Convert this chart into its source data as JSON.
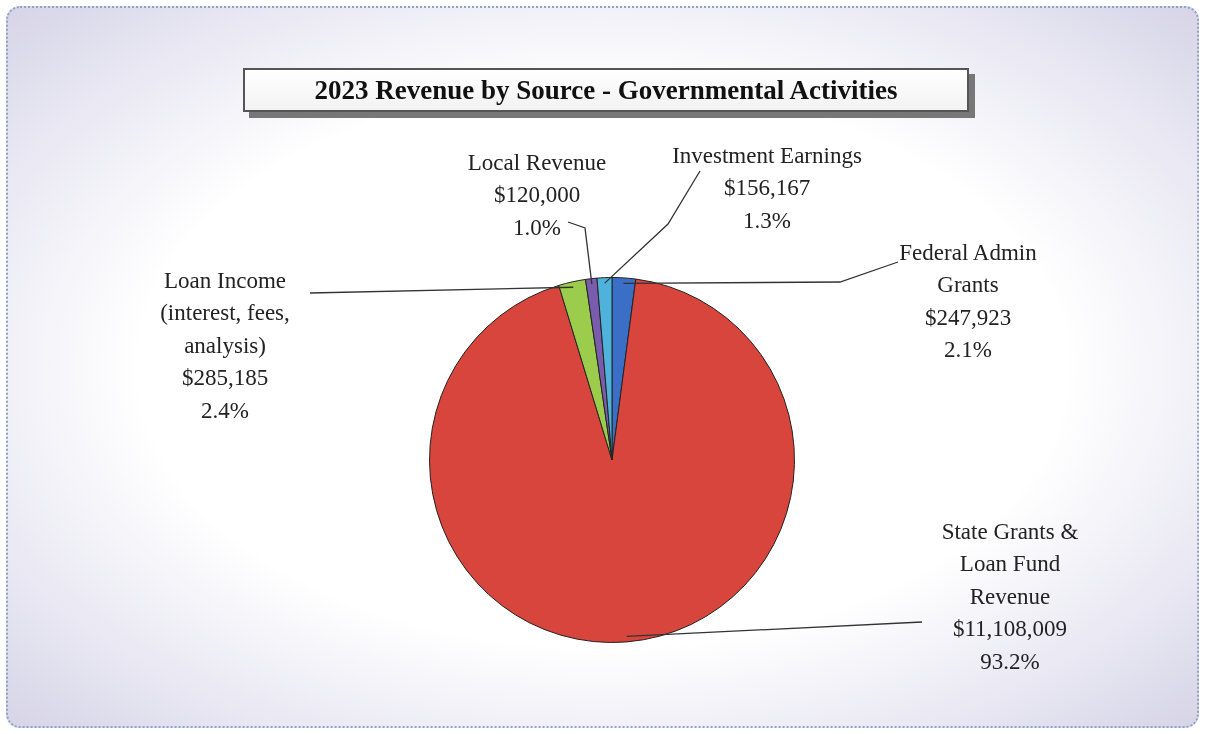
{
  "chart_data": {
    "type": "pie",
    "title": "2023 Revenue by Source - Governmental Activities",
    "categories": [
      "Federal Admin Grants",
      "State Grants & Loan Fund Revenue",
      "Loan Income (interest, fees, analysis)",
      "Local Revenue",
      "Investment Earnings"
    ],
    "values": [
      247923,
      11108009,
      285185,
      120000,
      156167
    ],
    "value_labels": [
      "$247,923\n2.1%",
      "$11,108,009\n93.2%",
      "$285,185\n2.4%",
      "$120,000\n1.0%",
      "$156,167\n1.3%"
    ],
    "colors": [
      "#3b6fc6",
      "#d8453d",
      "#9ccc4c",
      "#7a5cad",
      "#4fb2da"
    ],
    "legend": false
  }
}
